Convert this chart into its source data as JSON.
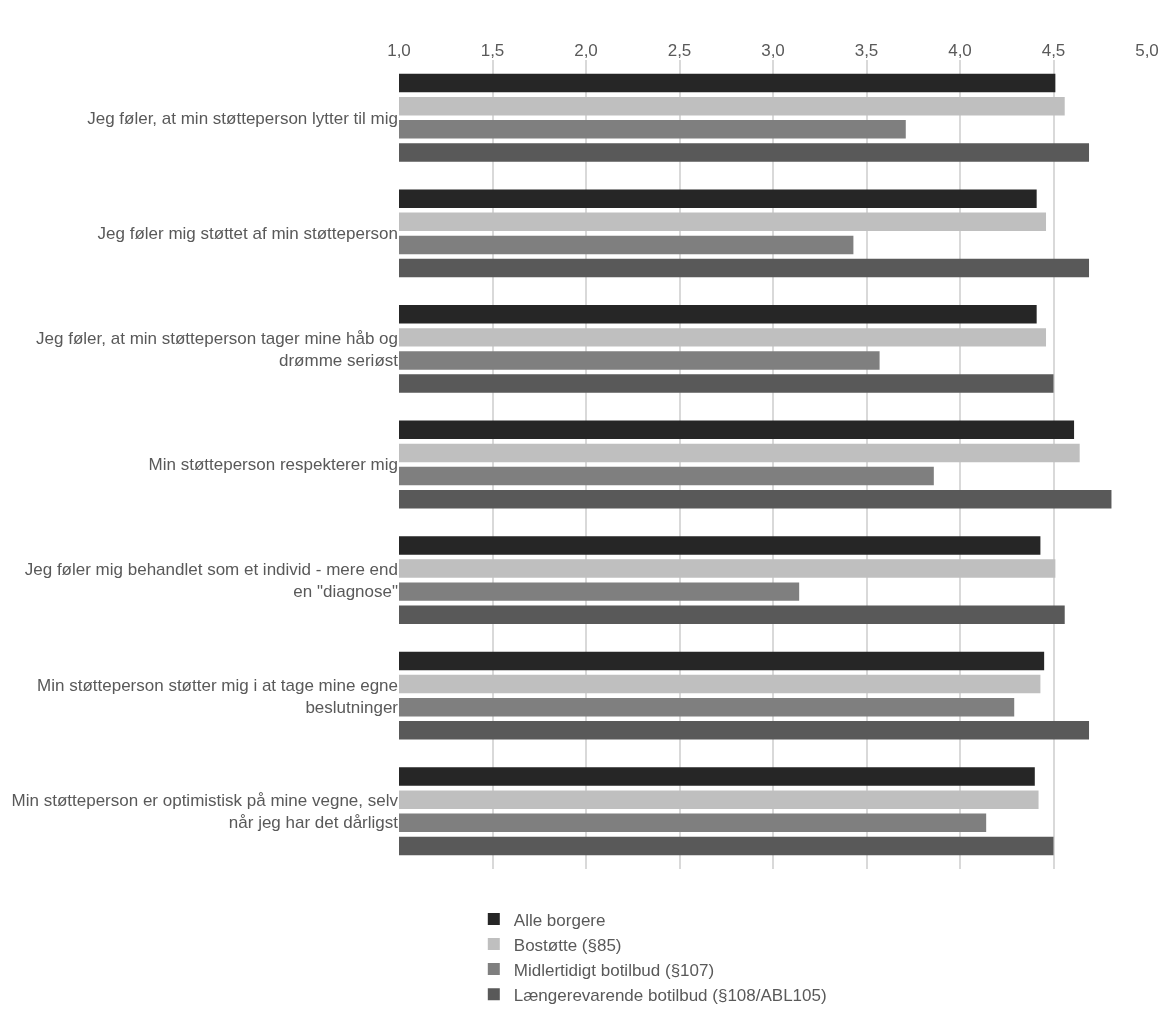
{
  "chart_data": {
    "type": "bar",
    "orientation": "horizontal",
    "categories": [
      "Jeg føler, at min støtteperson lytter til mig",
      "Jeg føler mig støttet af min støtteperson",
      "Jeg føler, at min støtteperson tager mine håb og drømme seriøst",
      "Min støtteperson respekterer mig",
      "Jeg føler mig behandlet som et individ - mere end en \"diagnose\"",
      "Min støtteperson støtter mig i at tage mine egne beslutninger",
      "Min støtteperson er optimistisk på mine vegne, selv når jeg har det dårligst"
    ],
    "series": [
      {
        "name": "Alle borgere",
        "color": "#262626",
        "values": [
          4.51,
          4.41,
          4.41,
          4.61,
          4.43,
          4.45,
          4.4
        ]
      },
      {
        "name": "Bostøtte (§85)",
        "color": "#bfbfbf",
        "values": [
          4.56,
          4.46,
          4.46,
          4.64,
          4.51,
          4.43,
          4.42
        ]
      },
      {
        "name": "Midlertidigt botilbud (§107)",
        "color": "#7f7f7f",
        "values": [
          3.71,
          3.43,
          3.57,
          3.86,
          3.14,
          4.29,
          4.14
        ]
      },
      {
        "name": "Længerevarende botilbud (§108/ABL105)",
        "color": "#595959",
        "values": [
          4.69,
          4.69,
          4.5,
          4.81,
          4.56,
          4.69,
          4.5
        ]
      }
    ],
    "xlim": [
      1,
      5
    ],
    "xticks": [
      {
        "value": 1,
        "label": "1,0"
      },
      {
        "value": 1.5,
        "label": "1,5"
      },
      {
        "value": 2,
        "label": "2,0"
      },
      {
        "value": 2.5,
        "label": "2,5"
      },
      {
        "value": 3,
        "label": "3,0"
      },
      {
        "value": 3.5,
        "label": "3,5"
      },
      {
        "value": 4,
        "label": "4,0"
      },
      {
        "value": 4.5,
        "label": "4,5"
      },
      {
        "value": 5,
        "label": "5,0"
      }
    ],
    "grid": "x",
    "legend": "bottom"
  }
}
